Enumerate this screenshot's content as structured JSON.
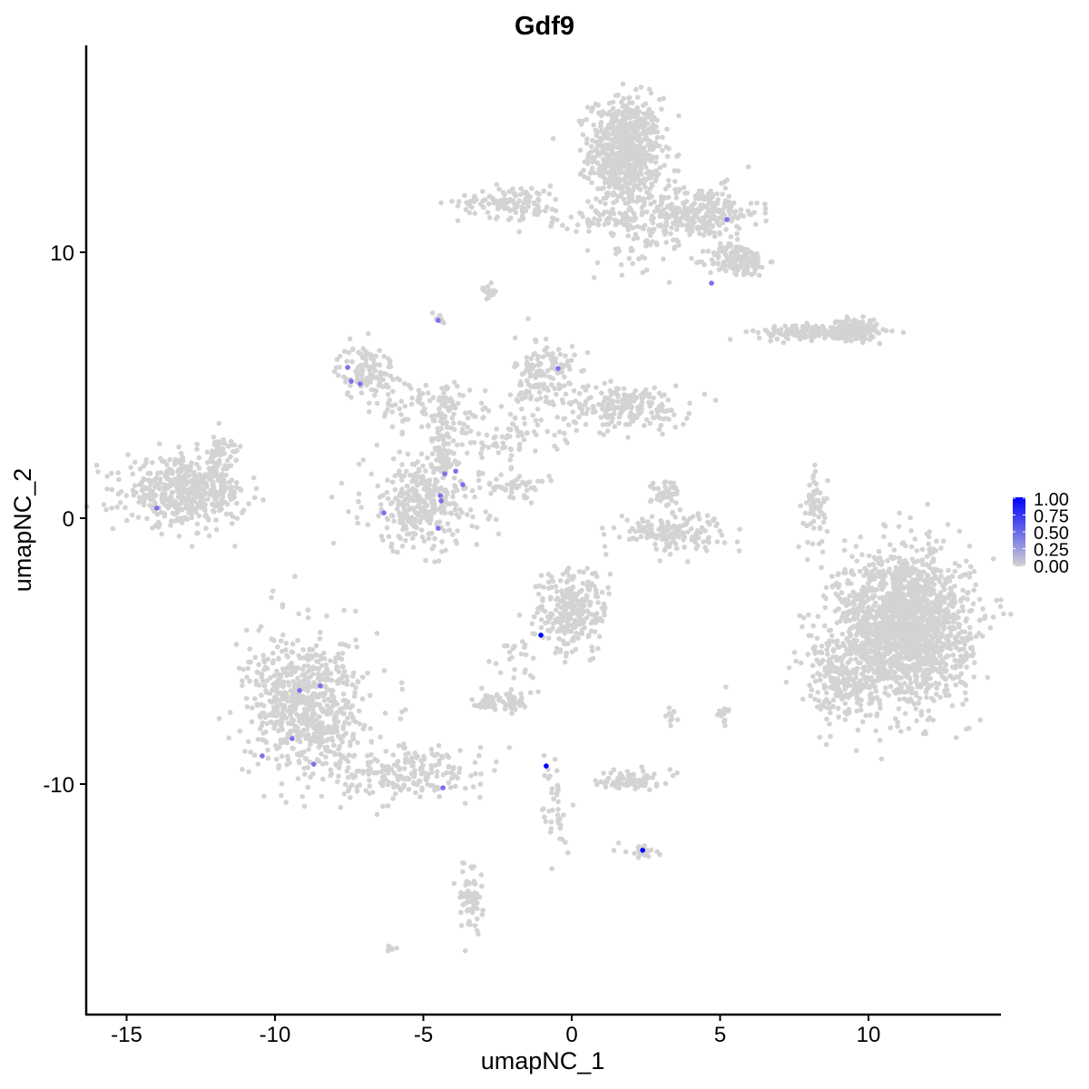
{
  "chart_data": {
    "type": "scatter",
    "title": "Gdf9",
    "xlabel": "umapNC_1",
    "ylabel": "umapNC_2",
    "xlim": [
      -16.4,
      14.5
    ],
    "ylim": [
      -18.7,
      17.8
    ],
    "xticks": [
      -15,
      -10,
      -5,
      0,
      5,
      10
    ],
    "yticks": [
      -10,
      0,
      10
    ],
    "grid": false,
    "colors": {
      "low": "#d3d3d3",
      "high": "#0000ff"
    },
    "legend": {
      "position": "right",
      "ticks": [
        "1.00",
        "0.75",
        "0.50",
        "0.25",
        "0.00"
      ]
    },
    "background_clusters": [
      {
        "center": [
          1.8,
          13.8
        ],
        "sd": [
          0.6,
          1.0
        ],
        "n": 700
      },
      {
        "center": [
          4.3,
          11.5
        ],
        "sd": [
          1.0,
          0.5
        ],
        "n": 250
      },
      {
        "center": [
          5.6,
          9.7
        ],
        "sd": [
          0.5,
          0.3
        ],
        "n": 150
      },
      {
        "center": [
          -2.0,
          11.9
        ],
        "sd": [
          0.9,
          0.3
        ],
        "n": 120
      },
      {
        "center": [
          0.8,
          11.3
        ],
        "sd": [
          0.8,
          0.25
        ],
        "n": 50
      },
      {
        "center": [
          2.5,
          11.0
        ],
        "sd": [
          1.0,
          0.8
        ],
        "n": 120
      },
      {
        "center": [
          -2.8,
          8.6
        ],
        "sd": [
          0.15,
          0.15
        ],
        "n": 15
      },
      {
        "center": [
          -4.5,
          7.4
        ],
        "sd": [
          0.15,
          0.2
        ],
        "n": 12
      },
      {
        "center": [
          8.3,
          7.0
        ],
        "sd": [
          1.0,
          0.15
        ],
        "n": 200
      },
      {
        "center": [
          9.6,
          7.1
        ],
        "sd": [
          0.35,
          0.2
        ],
        "n": 100
      },
      {
        "center": [
          -6.9,
          5.5
        ],
        "sd": [
          0.5,
          0.5
        ],
        "n": 120
      },
      {
        "center": [
          -0.9,
          5.3
        ],
        "sd": [
          0.5,
          0.8
        ],
        "n": 150
      },
      {
        "center": [
          1.8,
          4.2
        ],
        "sd": [
          1.1,
          0.4
        ],
        "n": 200
      },
      {
        "center": [
          -4.5,
          4.2
        ],
        "sd": [
          1.0,
          0.5
        ],
        "n": 100
      },
      {
        "center": [
          -2.5,
          3.0
        ],
        "sd": [
          1.0,
          0.5
        ],
        "n": 80
      },
      {
        "center": [
          -5.0,
          0.6
        ],
        "sd": [
          1.0,
          0.9
        ],
        "n": 350
      },
      {
        "center": [
          -4.3,
          2.8
        ],
        "sd": [
          0.2,
          0.6
        ],
        "n": 50
      },
      {
        "center": [
          -1.8,
          1.2
        ],
        "sd": [
          0.5,
          0.2
        ],
        "n": 40
      },
      {
        "center": [
          -13.0,
          1.0
        ],
        "sd": [
          1.0,
          0.6
        ],
        "n": 500
      },
      {
        "center": [
          -11.8,
          2.5
        ],
        "sd": [
          0.3,
          0.4
        ],
        "n": 40
      },
      {
        "center": [
          3.3,
          -0.5
        ],
        "sd": [
          0.9,
          0.35
        ],
        "n": 150
      },
      {
        "center": [
          3.3,
          0.9
        ],
        "sd": [
          0.3,
          0.3
        ],
        "n": 40
      },
      {
        "center": [
          8.2,
          0.3
        ],
        "sd": [
          0.2,
          0.7
        ],
        "n": 60
      },
      {
        "center": [
          11.2,
          -4.1
        ],
        "sd": [
          1.1,
          1.4
        ],
        "n": 1800
      },
      {
        "center": [
          9.0,
          -6.0
        ],
        "sd": [
          0.6,
          0.8
        ],
        "n": 200
      },
      {
        "center": [
          0.0,
          -3.5
        ],
        "sd": [
          0.6,
          0.8
        ],
        "n": 250
      },
      {
        "center": [
          -1.9,
          -5.4
        ],
        "sd": [
          0.4,
          0.6
        ],
        "n": 30
      },
      {
        "center": [
          -2.3,
          -6.9
        ],
        "sd": [
          0.5,
          0.2
        ],
        "n": 70
      },
      {
        "center": [
          -8.9,
          -7.1
        ],
        "sd": [
          1.0,
          1.3
        ],
        "n": 700
      },
      {
        "center": [
          -5.5,
          -9.6
        ],
        "sd": [
          1.2,
          0.5
        ],
        "n": 200
      },
      {
        "center": [
          -0.6,
          -10.9
        ],
        "sd": [
          0.2,
          1.0
        ],
        "n": 40
      },
      {
        "center": [
          2.0,
          -9.8
        ],
        "sd": [
          0.5,
          0.2
        ],
        "n": 80
      },
      {
        "center": [
          2.4,
          -12.5
        ],
        "sd": [
          0.3,
          0.15
        ],
        "n": 20
      },
      {
        "center": [
          -3.4,
          -14.3
        ],
        "sd": [
          0.2,
          0.6
        ],
        "n": 60
      },
      {
        "center": [
          -6.1,
          -16.2
        ],
        "sd": [
          0.1,
          0.1
        ],
        "n": 6
      },
      {
        "center": [
          5.1,
          -7.3
        ],
        "sd": [
          0.1,
          0.3
        ],
        "n": 15
      },
      {
        "center": [
          3.4,
          -7.5
        ],
        "sd": [
          0.1,
          0.2
        ],
        "n": 10
      }
    ],
    "expressing_points": [
      {
        "x": 5.23,
        "y": 11.23,
        "value": 0.6
      },
      {
        "x": 4.71,
        "y": 8.84,
        "value": 0.6
      },
      {
        "x": -4.5,
        "y": 7.44,
        "value": 0.6
      },
      {
        "x": -7.55,
        "y": 5.67,
        "value": 0.6
      },
      {
        "x": -7.43,
        "y": 5.15,
        "value": 0.6
      },
      {
        "x": -7.13,
        "y": 5.05,
        "value": 0.6
      },
      {
        "x": -0.46,
        "y": 5.63,
        "value": 0.6
      },
      {
        "x": -4.28,
        "y": 1.67,
        "value": 0.6
      },
      {
        "x": -3.91,
        "y": 1.77,
        "value": 0.6
      },
      {
        "x": -3.67,
        "y": 1.26,
        "value": 0.6
      },
      {
        "x": -4.43,
        "y": 0.85,
        "value": 0.6
      },
      {
        "x": -4.4,
        "y": 0.65,
        "value": 0.6
      },
      {
        "x": -4.5,
        "y": -0.38,
        "value": 0.6
      },
      {
        "x": -6.33,
        "y": 0.2,
        "value": 0.6
      },
      {
        "x": -13.98,
        "y": 0.38,
        "value": 0.6
      },
      {
        "x": -1.04,
        "y": -4.4,
        "value": 1.0
      },
      {
        "x": -9.17,
        "y": -6.48,
        "value": 0.6
      },
      {
        "x": -8.47,
        "y": -6.31,
        "value": 0.6
      },
      {
        "x": -9.42,
        "y": -8.29,
        "value": 0.6
      },
      {
        "x": -8.69,
        "y": -9.25,
        "value": 0.6
      },
      {
        "x": -10.43,
        "y": -8.94,
        "value": 0.6
      },
      {
        "x": -4.34,
        "y": -10.14,
        "value": 0.6
      },
      {
        "x": -0.86,
        "y": -9.32,
        "value": 1.0
      },
      {
        "x": 2.39,
        "y": -12.49,
        "value": 1.0
      }
    ]
  }
}
